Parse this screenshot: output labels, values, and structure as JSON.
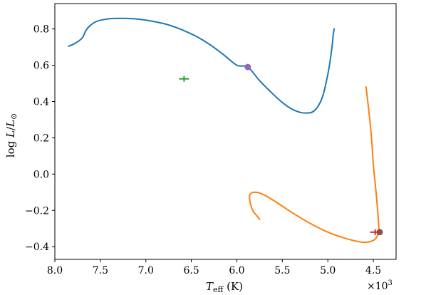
{
  "chart_data": {
    "type": "line",
    "x_reversed": true,
    "xlim": [
      8.0,
      4.25
    ],
    "ylim": [
      -0.47,
      0.94
    ],
    "x_ticks": [
      8.0,
      7.5,
      7.0,
      6.5,
      6.0,
      5.5,
      5.0,
      4.5
    ],
    "x_tick_labels": [
      "8.0",
      "7.5",
      "7.0",
      "6.5",
      "6.0",
      "5.5",
      "5.0",
      "4.5"
    ],
    "y_ticks": [
      0.8,
      0.6,
      0.4,
      0.2,
      0.0,
      -0.2,
      -0.4
    ],
    "y_tick_labels": [
      "0.8",
      "0.6",
      "0.4",
      "0.2",
      "0.0",
      "−0.2",
      "−0.4"
    ],
    "x_multiplier_label": "×10",
    "x_multiplier_exponent": "3",
    "xlabel": {
      "symbol": "T",
      "subscript": "eff",
      "unit": " (K)"
    },
    "ylabel": {
      "prefix": "log ",
      "L": "L",
      "slash": "/",
      "Lsun": "L",
      "sun_sub": "⊙"
    },
    "series": [
      {
        "color": "#1f77b4",
        "x": [
          7.85,
          7.78,
          7.7,
          7.66,
          7.62,
          7.55,
          7.45,
          7.35,
          7.2,
          7.05,
          6.9,
          6.75,
          6.6,
          6.45,
          6.3,
          6.15,
          6.0,
          5.88,
          5.75,
          5.6,
          5.5,
          5.4,
          5.3,
          5.22,
          5.16,
          5.1,
          5.05,
          5.0,
          4.97,
          4.95,
          4.94,
          4.93
        ],
        "y": [
          0.705,
          0.72,
          0.75,
          0.79,
          0.815,
          0.84,
          0.853,
          0.858,
          0.858,
          0.852,
          0.84,
          0.822,
          0.795,
          0.76,
          0.715,
          0.66,
          0.6,
          0.59,
          0.515,
          0.44,
          0.395,
          0.36,
          0.34,
          0.337,
          0.345,
          0.38,
          0.44,
          0.55,
          0.64,
          0.72,
          0.77,
          0.8
        ]
      },
      {
        "color": "#ff7f0e",
        "x": [
          4.58,
          4.55,
          4.52,
          4.5,
          4.47,
          4.45,
          4.44,
          4.46,
          4.5,
          4.56,
          4.65,
          4.8,
          5.0,
          5.2,
          5.4,
          5.55,
          5.68,
          5.75,
          5.8,
          5.84,
          5.86,
          5.85,
          5.82,
          5.78,
          5.75
        ],
        "y": [
          0.48,
          0.35,
          0.2,
          0.05,
          -0.1,
          -0.22,
          -0.3,
          -0.345,
          -0.365,
          -0.375,
          -0.373,
          -0.355,
          -0.32,
          -0.27,
          -0.21,
          -0.16,
          -0.12,
          -0.104,
          -0.1,
          -0.104,
          -0.12,
          -0.165,
          -0.205,
          -0.23,
          -0.25
        ]
      }
    ],
    "markers": [
      {
        "type": "dot",
        "x": 5.88,
        "y": 0.59,
        "color": "#9467bd"
      },
      {
        "type": "dot",
        "x": 4.43,
        "y": -0.32,
        "color": "#8c564b"
      },
      {
        "type": "cross",
        "x": 6.58,
        "y": 0.525,
        "color": "#2ca02c"
      },
      {
        "type": "cross",
        "x": 4.48,
        "y": -0.32,
        "color": "#d62728"
      }
    ]
  }
}
